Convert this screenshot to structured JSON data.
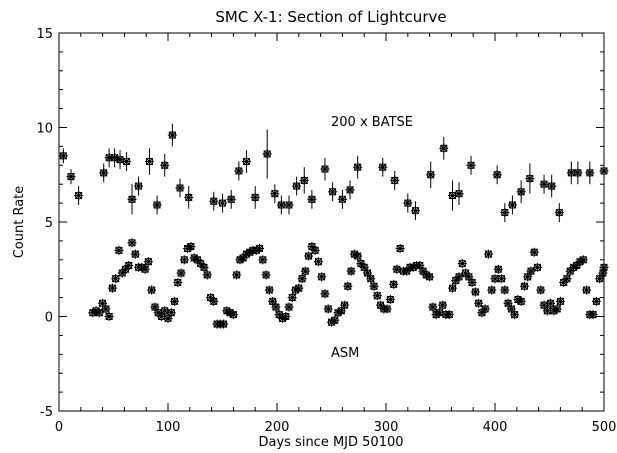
{
  "chart_data": {
    "type": "scatter",
    "title": "SMC X-1: Section of Lightcurve",
    "xlabel": "Days since MJD 50100",
    "ylabel": "Count Rate",
    "xlim": [
      0,
      500
    ],
    "ylim": [
      -5,
      15
    ],
    "xticks": [
      0,
      100,
      200,
      300,
      400,
      500
    ],
    "yticks": [
      -5,
      0,
      5,
      10,
      15
    ],
    "grid": false,
    "marker": "asterisk",
    "color": "#000000",
    "annotations": [
      "200 x BATSE",
      "ASM"
    ],
    "series": [
      {
        "x": [
          4,
          11,
          18,
          41,
          46,
          51,
          56,
          62,
          67,
          73,
          83,
          90,
          97,
          104,
          111,
          119,
          142,
          150,
          158,
          165,
          172,
          180,
          191,
          198,
          204,
          211,
          218,
          225,
          232,
          244,
          251,
          260,
          267,
          274,
          297,
          308,
          320,
          327,
          341,
          353,
          361,
          367,
          378,
          402,
          409,
          416,
          424,
          432,
          445,
          452,
          459,
          470,
          476,
          487,
          501
        ],
        "y": [
          8.5,
          7.4,
          6.4,
          7.6,
          8.4,
          8.4,
          8.3,
          8.2,
          6.2,
          6.9,
          8.2,
          5.9,
          8.0,
          9.6,
          6.8,
          6.3,
          6.1,
          6.0,
          6.2,
          7.7,
          8.2,
          6.3,
          8.6,
          6.5,
          5.9,
          5.9,
          6.9,
          7.2,
          6.2,
          7.8,
          6.6,
          6.2,
          6.7,
          7.9,
          7.9,
          7.2,
          6.0,
          5.6,
          7.5,
          8.9,
          6.4,
          6.5,
          8.0,
          7.5,
          5.5,
          5.9,
          6.6,
          7.3,
          7.0,
          6.9,
          5.5,
          7.6,
          7.6,
          7.6,
          7.7
        ],
        "yerr": [
          0.4,
          0.4,
          0.5,
          0.5,
          0.5,
          0.5,
          0.5,
          0.5,
          0.8,
          0.5,
          0.7,
          0.5,
          0.6,
          0.6,
          0.5,
          0.6,
          0.5,
          0.5,
          0.5,
          0.5,
          0.6,
          0.6,
          1.3,
          0.5,
          0.5,
          0.5,
          0.5,
          0.7,
          0.5,
          0.6,
          0.5,
          0.5,
          0.5,
          0.6,
          0.5,
          0.5,
          0.5,
          0.5,
          0.7,
          0.6,
          0.8,
          0.6,
          0.5,
          0.5,
          0.5,
          0.5,
          0.6,
          0.8,
          0.5,
          0.6,
          0.5,
          0.6,
          0.6,
          0.6,
          0.6
        ]
      },
      {
        "x": [
          31,
          34,
          37,
          40,
          43,
          46,
          49,
          52,
          55,
          58,
          61,
          64,
          67,
          70,
          73,
          76,
          79,
          82,
          85,
          88,
          91,
          94,
          97,
          100,
          103,
          106,
          109,
          112,
          115,
          118,
          121,
          124,
          127,
          130,
          133,
          136,
          139,
          142,
          145,
          148,
          151,
          154,
          157,
          160,
          163,
          166,
          169,
          172,
          175,
          178,
          181,
          184,
          187,
          190,
          193,
          196,
          199,
          202,
          205,
          208,
          211,
          214,
          217,
          220,
          223,
          226,
          229,
          232,
          235,
          238,
          241,
          244,
          247,
          250,
          253,
          256,
          259,
          262,
          265,
          268,
          271,
          274,
          277,
          280,
          283,
          286,
          289,
          292,
          295,
          298,
          301,
          304,
          307,
          310,
          313,
          316,
          319,
          322,
          325,
          328,
          331,
          334,
          337,
          340,
          343,
          346,
          349,
          352,
          355,
          358,
          361,
          364,
          367,
          370,
          373,
          376,
          379,
          382,
          385,
          388,
          391,
          394,
          397,
          400,
          403,
          406,
          409,
          412,
          415,
          418,
          421,
          424,
          427,
          430,
          433,
          436,
          439,
          442,
          445,
          448,
          451,
          454,
          457,
          460,
          463,
          466,
          469,
          472,
          475,
          478,
          481,
          484,
          487,
          490,
          493,
          496,
          499,
          502
        ],
        "y": [
          0.2,
          0.3,
          0.2,
          0.7,
          0.4,
          0.0,
          1.5,
          2.0,
          3.5,
          2.3,
          2.5,
          2.7,
          3.9,
          3.3,
          2.6,
          2.6,
          2.5,
          2.9,
          1.4,
          0.5,
          0.2,
          0.0,
          0.3,
          -0.1,
          0.2,
          0.8,
          1.8,
          2.3,
          3.0,
          3.6,
          3.7,
          3.1,
          3.0,
          2.8,
          2.6,
          2.2,
          1.0,
          0.8,
          -0.4,
          -0.4,
          -0.4,
          0.3,
          0.2,
          0.1,
          2.2,
          3.0,
          3.1,
          3.3,
          3.4,
          3.5,
          3.5,
          3.6,
          3.0,
          2.2,
          1.4,
          0.8,
          0.5,
          0.1,
          -0.1,
          0.0,
          0.5,
          1.0,
          1.4,
          1.5,
          2.0,
          2.4,
          3.2,
          3.7,
          3.5,
          2.9,
          2.1,
          1.2,
          0.4,
          -0.3,
          -0.2,
          0.2,
          0.3,
          0.6,
          1.6,
          2.4,
          3.3,
          3.2,
          2.8,
          2.6,
          2.3,
          2.0,
          1.6,
          1.1,
          0.6,
          0.4,
          0.4,
          0.9,
          1.7,
          2.5,
          3.6,
          2.4,
          2.4,
          2.6,
          2.6,
          2.7,
          2.7,
          2.4,
          2.2,
          2.1,
          0.5,
          0.1,
          0.2,
          0.6,
          0.1,
          0.1,
          1.5,
          1.9,
          2.1,
          2.8,
          2.3,
          2.1,
          1.8,
          1.3,
          0.7,
          0.2,
          0.4,
          3.3,
          1.4,
          2.0,
          2.5,
          2.0,
          1.4,
          0.7,
          0.4,
          0.1,
          0.9,
          0.8,
          1.6,
          2.1,
          2.4,
          3.4,
          2.6,
          1.4,
          0.6,
          0.3,
          0.7,
          0.3,
          0.4,
          0.8,
          1.8,
          2.0,
          2.4,
          2.6,
          2.7,
          2.9,
          3.0,
          1.4,
          0.1,
          0.1,
          0.8,
          2.0,
          2.3,
          2.6
        ],
        "yerr": []
      }
    ]
  }
}
